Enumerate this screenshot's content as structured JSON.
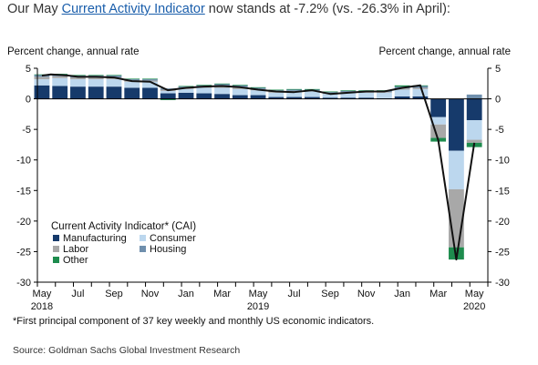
{
  "headline": {
    "prefix": "Our May ",
    "link_text": "Current Activity Indicator",
    "suffix": " now stands at -7.2% (vs. -26.3% in April):"
  },
  "footnote": "*First principal component of 37 key weekly and monthly US economic indicators.",
  "source": "Source: Goldman Sachs Global Investment Research",
  "colors": {
    "manufacturing": "#163a6b",
    "consumer": "#bcd7ee",
    "labor": "#a8a8a8",
    "housing": "#6f8fad",
    "other": "#1e8c4e",
    "cai_line": "#111111"
  },
  "chart_data": {
    "type": "bar",
    "subtype": "stacked bar with line overlay",
    "left_axis_title": "Percent change, annual rate",
    "right_axis_title": "Percent change, annual rate",
    "ylim": [
      -30,
      5
    ],
    "yticks": [
      5,
      0,
      -5,
      -10,
      -15,
      -20,
      -25,
      -30
    ],
    "grid": false,
    "legend_title": "Current Activity  Indicator* (CAI)",
    "legend_position": "bottom-left",
    "x_tick_labels": [
      {
        "label": "May",
        "year": "2018",
        "index": 0
      },
      {
        "label": "Jul",
        "year": "",
        "index": 4
      },
      {
        "label": "Sep",
        "year": "",
        "index": 8
      },
      {
        "label": "Nov",
        "year": "",
        "index": 12
      },
      {
        "label": "Jan",
        "year": "",
        "index": 16
      },
      {
        "label": "Mar",
        "year": "",
        "index": 20
      },
      {
        "label": "May",
        "year": "2019",
        "index": 24
      },
      {
        "label": "Jul",
        "year": "",
        "index": 28
      },
      {
        "label": "Sep",
        "year": "",
        "index": 32
      },
      {
        "label": "Nov",
        "year": "",
        "index": 36
      },
      {
        "label": "Jan",
        "year": "",
        "index": 40
      },
      {
        "label": "Mar",
        "year": "",
        "index": 44
      },
      {
        "label": "May",
        "year": "2020",
        "index": 48
      }
    ],
    "x": [
      "2018-05",
      "2018-06",
      "2018-07",
      "2018-08",
      "2018-09",
      "2018-10",
      "2018-11",
      "2018-12",
      "2019-01",
      "2019-02",
      "2019-03",
      "2019-04",
      "2019-05",
      "2019-06",
      "2019-07",
      "2019-08",
      "2019-09",
      "2019-10",
      "2019-11",
      "2019-12",
      "2020-01",
      "2020-02",
      "2020-03",
      "2020-04",
      "2020-05"
    ],
    "bar_positions": [
      0,
      2,
      4,
      6,
      8,
      10,
      12,
      14,
      16,
      18,
      20,
      22,
      24,
      26,
      28,
      30,
      32,
      34,
      36,
      38,
      40,
      42,
      44,
      46,
      48
    ],
    "series": [
      {
        "name": "Manufacturing",
        "key": "manufacturing",
        "values": [
          2.2,
          2.1,
          2.0,
          2.0,
          2.0,
          1.8,
          1.8,
          0.9,
          1.0,
          0.9,
          0.8,
          0.6,
          0.6,
          0.3,
          0.3,
          0.3,
          0.2,
          0.2,
          0.2,
          0.1,
          0.4,
          0.4,
          -3.0,
          -8.5,
          -3.5
        ]
      },
      {
        "name": "Consumer",
        "key": "consumer",
        "values": [
          1.0,
          1.3,
          1.2,
          1.2,
          1.2,
          1.0,
          1.0,
          0.4,
          0.6,
          0.9,
          1.0,
          1.0,
          0.8,
          0.7,
          0.8,
          0.9,
          0.6,
          0.8,
          0.8,
          0.9,
          1.1,
          1.2,
          -1.2,
          -6.3,
          -3.2
        ]
      },
      {
        "name": "Labor",
        "key": "labor",
        "values": [
          0.4,
          0.3,
          0.3,
          0.3,
          0.3,
          0.2,
          0.2,
          0.2,
          0.2,
          0.2,
          0.3,
          0.3,
          0.2,
          0.2,
          0.2,
          0.1,
          0.1,
          0.1,
          0.1,
          0.1,
          0.2,
          0.2,
          -2.2,
          -9.5,
          -0.5
        ]
      },
      {
        "name": "Housing",
        "key": "housing",
        "values": [
          0.3,
          0.3,
          0.3,
          0.3,
          0.3,
          0.2,
          0.2,
          0.2,
          0.2,
          0.2,
          0.3,
          0.3,
          0.2,
          0.2,
          0.2,
          0.2,
          0.2,
          0.2,
          0.2,
          0.2,
          0.3,
          0.3,
          0.0,
          0.0,
          0.7
        ]
      },
      {
        "name": "Other",
        "key": "other",
        "values": [
          0.1,
          0.1,
          0.1,
          0.1,
          0.1,
          0.1,
          0.1,
          -0.2,
          0.1,
          0.1,
          0.1,
          0.1,
          0.1,
          0.1,
          0.1,
          0.1,
          0.1,
          0.1,
          0.1,
          0.1,
          0.2,
          0.1,
          -0.6,
          -2.0,
          -0.7
        ]
      }
    ],
    "line": {
      "name": "CAI",
      "points": [
        {
          "i": 0,
          "y": 3.8
        },
        {
          "i": 1,
          "y": 4.0
        },
        {
          "i": 2,
          "y": 3.9
        },
        {
          "i": 3,
          "y": 3.8
        },
        {
          "i": 4,
          "y": 3.6
        },
        {
          "i": 6,
          "y": 3.6
        },
        {
          "i": 8,
          "y": 3.5
        },
        {
          "i": 10,
          "y": 2.9
        },
        {
          "i": 12,
          "y": 2.8
        },
        {
          "i": 14,
          "y": 1.4
        },
        {
          "i": 16,
          "y": 1.8
        },
        {
          "i": 18,
          "y": 2.0
        },
        {
          "i": 20,
          "y": 2.1
        },
        {
          "i": 22,
          "y": 1.9
        },
        {
          "i": 24,
          "y": 1.5
        },
        {
          "i": 26,
          "y": 1.2
        },
        {
          "i": 28,
          "y": 1.1
        },
        {
          "i": 30,
          "y": 1.4
        },
        {
          "i": 32,
          "y": 0.8
        },
        {
          "i": 34,
          "y": 1.0
        },
        {
          "i": 36,
          "y": 1.2
        },
        {
          "i": 38,
          "y": 1.2
        },
        {
          "i": 40,
          "y": 1.8
        },
        {
          "i": 42,
          "y": 2.2
        },
        {
          "i": 44,
          "y": -6.8
        },
        {
          "i": 46,
          "y": -26.3
        },
        {
          "i": 48,
          "y": -7.2
        }
      ]
    }
  }
}
